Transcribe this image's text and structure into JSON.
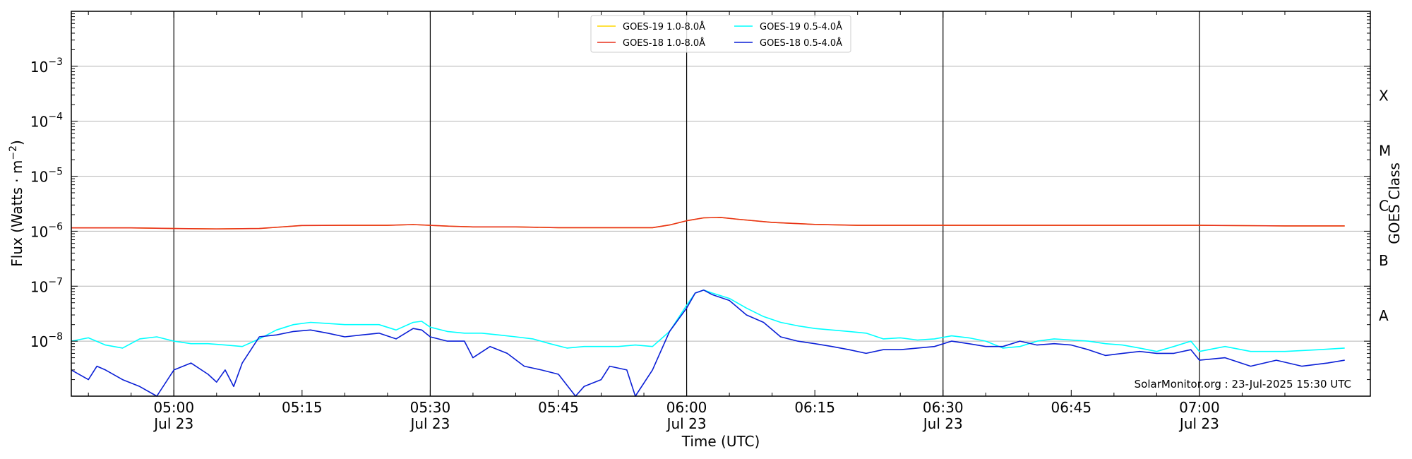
{
  "chart_data": {
    "type": "line",
    "xlabel": "Time (UTC)",
    "ylabel_main": "Flux (Watts · m",
    "ylabel_sup": "−2",
    "ylabel_close": ")",
    "ylabel_right": "GOES Class",
    "credit": "SolarMonitor.org : 23-Jul-2025 15:30 UTC",
    "log_y": true,
    "grid": "horizontal",
    "legend_placement": "top-center",
    "xlim": [
      "04:48",
      "07:20"
    ],
    "ylim": [
      1e-09,
      0.01
    ],
    "x_ticks": [
      {
        "time": "05:00",
        "label": "05:00",
        "sublabel": "Jul 23",
        "vline": true
      },
      {
        "time": "05:15",
        "label": "05:15",
        "sublabel": "",
        "vline": false
      },
      {
        "time": "05:30",
        "label": "05:30",
        "sublabel": "Jul 23",
        "vline": true
      },
      {
        "time": "05:45",
        "label": "05:45",
        "sublabel": "",
        "vline": false
      },
      {
        "time": "06:00",
        "label": "06:00",
        "sublabel": "Jul 23",
        "vline": true
      },
      {
        "time": "06:15",
        "label": "06:15",
        "sublabel": "",
        "vline": false
      },
      {
        "time": "06:30",
        "label": "06:30",
        "sublabel": "Jul 23",
        "vline": true
      },
      {
        "time": "06:45",
        "label": "06:45",
        "sublabel": "",
        "vline": false
      },
      {
        "time": "07:00",
        "label": "07:00",
        "sublabel": "Jul 23",
        "vline": true
      }
    ],
    "y_ticks": [
      {
        "value": 1e-08,
        "label": "10",
        "exp": "−8"
      },
      {
        "value": 1e-07,
        "label": "10",
        "exp": "−7"
      },
      {
        "value": 1e-06,
        "label": "10",
        "exp": "−6"
      },
      {
        "value": 1e-05,
        "label": "10",
        "exp": "−5"
      },
      {
        "value": 0.0001,
        "label": "10",
        "exp": "−4"
      },
      {
        "value": 0.001,
        "label": "10",
        "exp": "−3"
      }
    ],
    "classes": [
      {
        "label": "A",
        "value": 3e-08
      },
      {
        "label": "B",
        "value": 3e-07
      },
      {
        "label": "C",
        "value": 3e-06
      },
      {
        "label": "M",
        "value": 3e-05
      },
      {
        "label": "X",
        "value": 0.0003
      }
    ],
    "series": [
      {
        "name": "GOES-19 1.0-8.0Å",
        "color": "#ffd700",
        "points": [
          [
            "04:48",
            1.15e-06
          ],
          [
            "04:55",
            1.15e-06
          ],
          [
            "05:00",
            1.12e-06
          ],
          [
            "05:05",
            1.1e-06
          ],
          [
            "05:10",
            1.12e-06
          ],
          [
            "05:15",
            1.27e-06
          ],
          [
            "05:20",
            1.28e-06
          ],
          [
            "05:25",
            1.28e-06
          ],
          [
            "05:28",
            1.32e-06
          ],
          [
            "05:32",
            1.24e-06
          ],
          [
            "05:35",
            1.2e-06
          ],
          [
            "05:40",
            1.2e-06
          ],
          [
            "05:45",
            1.16e-06
          ],
          [
            "05:50",
            1.16e-06
          ],
          [
            "05:56",
            1.16e-06
          ],
          [
            "05:58",
            1.3e-06
          ],
          [
            "06:00",
            1.55e-06
          ],
          [
            "06:02",
            1.75e-06
          ],
          [
            "06:04",
            1.78e-06
          ],
          [
            "06:06",
            1.65e-06
          ],
          [
            "06:10",
            1.45e-06
          ],
          [
            "06:15",
            1.33e-06
          ],
          [
            "06:20",
            1.28e-06
          ],
          [
            "06:30",
            1.28e-06
          ],
          [
            "06:40",
            1.28e-06
          ],
          [
            "06:50",
            1.28e-06
          ],
          [
            "07:00",
            1.28e-06
          ],
          [
            "07:10",
            1.25e-06
          ],
          [
            "07:17",
            1.25e-06
          ]
        ]
      },
      {
        "name": "GOES-18 1.0-8.0Å",
        "color": "#e8301c",
        "points": [
          [
            "04:48",
            1.15e-06
          ],
          [
            "04:55",
            1.15e-06
          ],
          [
            "05:00",
            1.12e-06
          ],
          [
            "05:05",
            1.1e-06
          ],
          [
            "05:10",
            1.12e-06
          ],
          [
            "05:15",
            1.27e-06
          ],
          [
            "05:20",
            1.28e-06
          ],
          [
            "05:25",
            1.28e-06
          ],
          [
            "05:28",
            1.32e-06
          ],
          [
            "05:32",
            1.24e-06
          ],
          [
            "05:35",
            1.2e-06
          ],
          [
            "05:40",
            1.2e-06
          ],
          [
            "05:45",
            1.16e-06
          ],
          [
            "05:50",
            1.16e-06
          ],
          [
            "05:56",
            1.16e-06
          ],
          [
            "05:58",
            1.3e-06
          ],
          [
            "06:00",
            1.55e-06
          ],
          [
            "06:02",
            1.75e-06
          ],
          [
            "06:04",
            1.78e-06
          ],
          [
            "06:06",
            1.65e-06
          ],
          [
            "06:10",
            1.45e-06
          ],
          [
            "06:15",
            1.33e-06
          ],
          [
            "06:20",
            1.28e-06
          ],
          [
            "06:30",
            1.28e-06
          ],
          [
            "06:40",
            1.28e-06
          ],
          [
            "06:50",
            1.28e-06
          ],
          [
            "07:00",
            1.28e-06
          ],
          [
            "07:10",
            1.25e-06
          ],
          [
            "07:17",
            1.25e-06
          ]
        ]
      },
      {
        "name": "GOES-19 0.5-4.0Å",
        "color": "#00ffff",
        "points": [
          [
            "04:48",
            1e-08
          ],
          [
            "04:50",
            1.15e-08
          ],
          [
            "04:52",
            8.5e-09
          ],
          [
            "04:54",
            7.5e-09
          ],
          [
            "04:56",
            1.1e-08
          ],
          [
            "04:58",
            1.2e-08
          ],
          [
            "05:00",
            1e-08
          ],
          [
            "05:02",
            9e-09
          ],
          [
            "05:04",
            9e-09
          ],
          [
            "05:06",
            8.5e-09
          ],
          [
            "05:08",
            8e-09
          ],
          [
            "05:10",
            1.1e-08
          ],
          [
            "05:12",
            1.6e-08
          ],
          [
            "05:14",
            2e-08
          ],
          [
            "05:16",
            2.2e-08
          ],
          [
            "05:18",
            2.1e-08
          ],
          [
            "05:20",
            2e-08
          ],
          [
            "05:22",
            2e-08
          ],
          [
            "05:24",
            2e-08
          ],
          [
            "05:26",
            1.6e-08
          ],
          [
            "05:28",
            2.2e-08
          ],
          [
            "05:29",
            2.3e-08
          ],
          [
            "05:30",
            1.8e-08
          ],
          [
            "05:32",
            1.5e-08
          ],
          [
            "05:34",
            1.4e-08
          ],
          [
            "05:36",
            1.4e-08
          ],
          [
            "05:38",
            1.3e-08
          ],
          [
            "05:40",
            1.2e-08
          ],
          [
            "05:42",
            1.1e-08
          ],
          [
            "05:44",
            9e-09
          ],
          [
            "05:46",
            7.5e-09
          ],
          [
            "05:48",
            8e-09
          ],
          [
            "05:50",
            8e-09
          ],
          [
            "05:52",
            8e-09
          ],
          [
            "05:54",
            8.5e-09
          ],
          [
            "05:56",
            8e-09
          ],
          [
            "05:58",
            1.5e-08
          ],
          [
            "06:00",
            4.5e-08
          ],
          [
            "06:01",
            7.5e-08
          ],
          [
            "06:02",
            8.5e-08
          ],
          [
            "06:03",
            7.5e-08
          ],
          [
            "06:05",
            6e-08
          ],
          [
            "06:07",
            4e-08
          ],
          [
            "06:09",
            2.8e-08
          ],
          [
            "06:11",
            2.2e-08
          ],
          [
            "06:13",
            1.9e-08
          ],
          [
            "06:15",
            1.7e-08
          ],
          [
            "06:17",
            1.6e-08
          ],
          [
            "06:19",
            1.5e-08
          ],
          [
            "06:21",
            1.4e-08
          ],
          [
            "06:23",
            1.1e-08
          ],
          [
            "06:25",
            1.15e-08
          ],
          [
            "06:27",
            1.05e-08
          ],
          [
            "06:29",
            1.1e-08
          ],
          [
            "06:31",
            1.25e-08
          ],
          [
            "06:33",
            1.15e-08
          ],
          [
            "06:35",
            1e-08
          ],
          [
            "06:37",
            7.5e-09
          ],
          [
            "06:39",
            8e-09
          ],
          [
            "06:41",
            1e-08
          ],
          [
            "06:43",
            1.1e-08
          ],
          [
            "06:45",
            1.05e-08
          ],
          [
            "06:47",
            1e-08
          ],
          [
            "06:49",
            9e-09
          ],
          [
            "06:51",
            8.5e-09
          ],
          [
            "06:53",
            7.5e-09
          ],
          [
            "06:55",
            6.5e-09
          ],
          [
            "06:57",
            8e-09
          ],
          [
            "06:59",
            1e-08
          ],
          [
            "07:00",
            6.5e-09
          ],
          [
            "07:03",
            8e-09
          ],
          [
            "07:06",
            6.5e-09
          ],
          [
            "07:10",
            6.5e-09
          ],
          [
            "07:14",
            7e-09
          ],
          [
            "07:17",
            7.5e-09
          ]
        ]
      },
      {
        "name": "GOES-18 0.5-4.0Å",
        "color": "#0a1fd6",
        "points": [
          [
            "04:48",
            3e-09
          ],
          [
            "04:50",
            2e-09
          ],
          [
            "04:51",
            3.5e-09
          ],
          [
            "04:52",
            3e-09
          ],
          [
            "04:54",
            2e-09
          ],
          [
            "04:56",
            1.5e-09
          ],
          [
            "04:58",
            1e-09
          ],
          [
            "05:00",
            3e-09
          ],
          [
            "05:02",
            4e-09
          ],
          [
            "05:04",
            2.5e-09
          ],
          [
            "05:05",
            1.8e-09
          ],
          [
            "05:06",
            3e-09
          ],
          [
            "05:07",
            1.5e-09
          ],
          [
            "05:08",
            4e-09
          ],
          [
            "05:10",
            1.2e-08
          ],
          [
            "05:12",
            1.3e-08
          ],
          [
            "05:14",
            1.5e-08
          ],
          [
            "05:16",
            1.6e-08
          ],
          [
            "05:18",
            1.4e-08
          ],
          [
            "05:20",
            1.2e-08
          ],
          [
            "05:22",
            1.3e-08
          ],
          [
            "05:24",
            1.4e-08
          ],
          [
            "05:26",
            1.1e-08
          ],
          [
            "05:28",
            1.7e-08
          ],
          [
            "05:29",
            1.6e-08
          ],
          [
            "05:30",
            1.2e-08
          ],
          [
            "05:32",
            1e-08
          ],
          [
            "05:34",
            1e-08
          ],
          [
            "05:35",
            5e-09
          ],
          [
            "05:37",
            8e-09
          ],
          [
            "05:39",
            6e-09
          ],
          [
            "05:41",
            3.5e-09
          ],
          [
            "05:43",
            3e-09
          ],
          [
            "05:45",
            2.5e-09
          ],
          [
            "05:47",
            1e-09
          ],
          [
            "05:48",
            1.5e-09
          ],
          [
            "05:50",
            2e-09
          ],
          [
            "05:51",
            3.5e-09
          ],
          [
            "05:53",
            3e-09
          ],
          [
            "05:54",
            1e-09
          ],
          [
            "05:56",
            3e-09
          ],
          [
            "05:58",
            1.5e-08
          ],
          [
            "06:00",
            4e-08
          ],
          [
            "06:01",
            7.5e-08
          ],
          [
            "06:02",
            8.5e-08
          ],
          [
            "06:03",
            7e-08
          ],
          [
            "06:05",
            5.5e-08
          ],
          [
            "06:07",
            3e-08
          ],
          [
            "06:09",
            2.2e-08
          ],
          [
            "06:11",
            1.2e-08
          ],
          [
            "06:13",
            1e-08
          ],
          [
            "06:15",
            9e-09
          ],
          [
            "06:17",
            8e-09
          ],
          [
            "06:19",
            7e-09
          ],
          [
            "06:21",
            6e-09
          ],
          [
            "06:23",
            7e-09
          ],
          [
            "06:25",
            7e-09
          ],
          [
            "06:27",
            7.5e-09
          ],
          [
            "06:29",
            8e-09
          ],
          [
            "06:31",
            1e-08
          ],
          [
            "06:33",
            9e-09
          ],
          [
            "06:35",
            8e-09
          ],
          [
            "06:37",
            8e-09
          ],
          [
            "06:39",
            1e-08
          ],
          [
            "06:41",
            8.5e-09
          ],
          [
            "06:43",
            9e-09
          ],
          [
            "06:45",
            8.5e-09
          ],
          [
            "06:47",
            7e-09
          ],
          [
            "06:49",
            5.5e-09
          ],
          [
            "06:51",
            6e-09
          ],
          [
            "06:53",
            6.5e-09
          ],
          [
            "06:55",
            6e-09
          ],
          [
            "06:57",
            6e-09
          ],
          [
            "06:59",
            7e-09
          ],
          [
            "07:00",
            4.5e-09
          ],
          [
            "07:03",
            5e-09
          ],
          [
            "07:06",
            3.5e-09
          ],
          [
            "07:09",
            4.5e-09
          ],
          [
            "07:12",
            3.5e-09
          ],
          [
            "07:15",
            4e-09
          ],
          [
            "07:17",
            4.5e-09
          ]
        ]
      }
    ]
  }
}
